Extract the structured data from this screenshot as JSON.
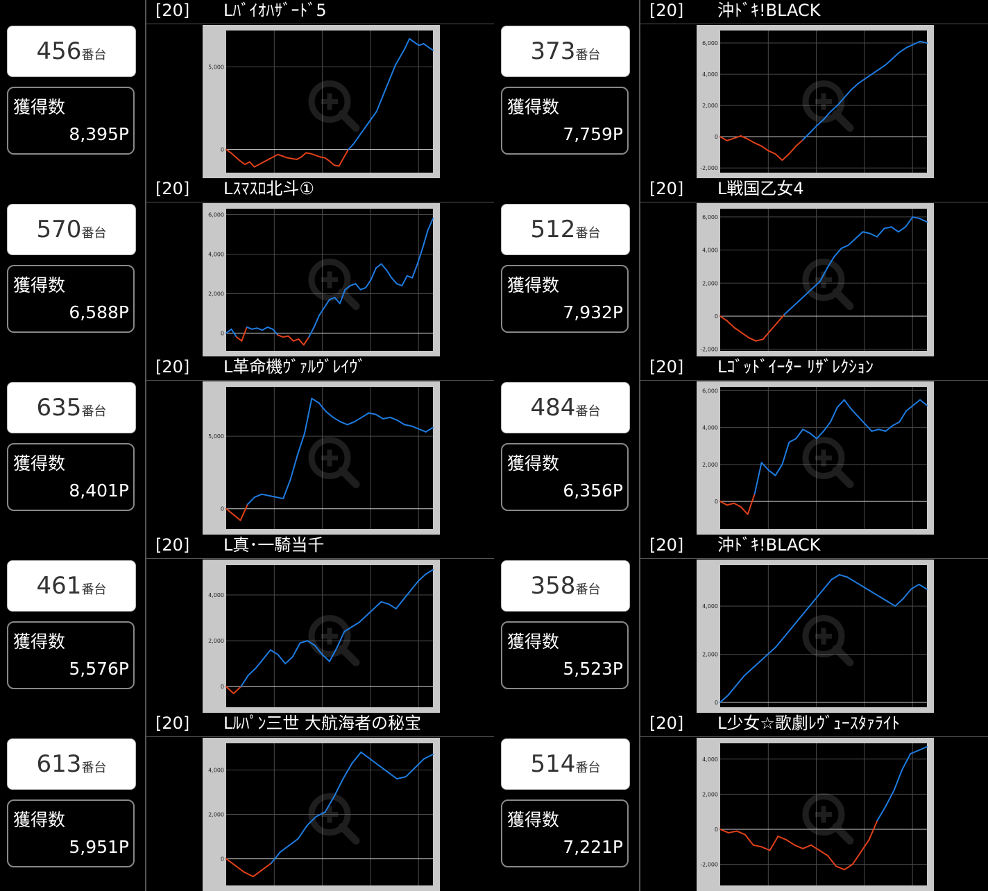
{
  "unit_suffix": "番台",
  "win_label": "獲得数",
  "colors": {
    "positive": "#1e7be0",
    "negative": "#e0401a",
    "frame": "#c8c8c8",
    "plot_bg": "#000000"
  },
  "zoom_icon": "magnifier-plus-icon",
  "cells": [
    {
      "unit": "456",
      "win": "8,395P",
      "count": "[20]",
      "machine": "Lﾊﾞｲｵﾊｻﾞｰﾄﾞ5"
    },
    {
      "unit": "373",
      "win": "7,759P",
      "count": "[20]",
      "machine": "沖ﾄﾞｷ!BLACK"
    },
    {
      "unit": "570",
      "win": "6,588P",
      "count": "[20]",
      "machine": "Lｽﾏｽﾛ北斗①"
    },
    {
      "unit": "512",
      "win": "7,932P",
      "count": "[20]",
      "machine": "L戦国乙女4"
    },
    {
      "unit": "635",
      "win": "8,401P",
      "count": "[20]",
      "machine": "L革命機ｳﾞｧﾙｳﾞﾚｲｳﾞ"
    },
    {
      "unit": "484",
      "win": "6,356P",
      "count": "[20]",
      "machine": "Lｺﾞｯﾄﾞｲｰﾀｰ ﾘｻﾞﾚｸｼｮﾝ"
    },
    {
      "unit": "461",
      "win": "5,576P",
      "count": "[20]",
      "machine": "L真･一騎当千"
    },
    {
      "unit": "358",
      "win": "5,523P",
      "count": "[20]",
      "machine": "沖ﾄﾞｷ!BLACK"
    },
    {
      "unit": "613",
      "win": "5,951P",
      "count": "[20]",
      "machine": "Lﾙﾊﾟﾝ三世 大航海者の秘宝"
    },
    {
      "unit": "514",
      "win": "7,221P",
      "count": "[20]",
      "machine": "L少女☆歌劇ﾚｳﾞｭｰｽﾀｧﾗｲﾄ"
    }
  ],
  "chart_data": [
    {
      "type": "line",
      "ylim": [
        -1400,
        7200
      ],
      "ticks": [
        0,
        5000
      ],
      "tick_labels": [
        "0",
        "5,000"
      ],
      "values": [
        0,
        -200,
        -450,
        -700,
        -900,
        -750,
        -1050,
        -900,
        -750,
        -600,
        -450,
        -300,
        -400,
        -500,
        -550,
        -600,
        -450,
        -200,
        -250,
        -350,
        -450,
        -500,
        -700,
        -950,
        -1000,
        -500,
        0,
        300,
        700,
        1100,
        1500,
        1900,
        2300,
        3000,
        3700,
        4400,
        5100,
        5600,
        6100,
        6700,
        6500,
        6300,
        6400,
        6200,
        6000
      ]
    },
    {
      "type": "line",
      "ylim": [
        -2300,
        6800
      ],
      "ticks": [
        -2000,
        0,
        2000,
        4000,
        6000
      ],
      "tick_labels": [
        "-2,000",
        "0",
        "2,000",
        "4,000",
        "6,000"
      ],
      "values": [
        0,
        -250,
        -100,
        50,
        -150,
        -400,
        -600,
        -900,
        -1100,
        -1500,
        -1100,
        -600,
        -200,
        250,
        700,
        1100,
        1600,
        2000,
        2500,
        3000,
        3400,
        3700,
        4000,
        4300,
        4600,
        5000,
        5400,
        5700,
        5900,
        6100,
        6000
      ]
    },
    {
      "type": "line",
      "ylim": [
        -900,
        6300
      ],
      "ticks": [
        0,
        2000,
        4000,
        6000
      ],
      "tick_labels": [
        "0",
        "2,000",
        "4,000",
        "6,000"
      ],
      "values": [
        0,
        200,
        -200,
        -400,
        300,
        200,
        250,
        150,
        300,
        200,
        -100,
        -200,
        -150,
        -400,
        -300,
        -600,
        -200,
        300,
        900,
        1300,
        1700,
        1800,
        1500,
        2200,
        2400,
        2500,
        2200,
        2300,
        2700,
        3300,
        3500,
        3200,
        2800,
        2500,
        2400,
        2900,
        2800,
        3500,
        4300,
        5200,
        5800
      ]
    },
    {
      "type": "line",
      "ylim": [
        -2100,
        6500
      ],
      "ticks": [
        -2000,
        0,
        2000,
        4000,
        6000
      ],
      "tick_labels": [
        "-2,000",
        "0",
        "2,000",
        "4,000",
        "6,000"
      ],
      "values": [
        0,
        -300,
        -700,
        -1000,
        -1300,
        -1500,
        -1400,
        -900,
        -400,
        100,
        500,
        900,
        1300,
        1700,
        2100,
        2900,
        3600,
        4100,
        4300,
        4700,
        5100,
        5000,
        4800,
        5300,
        5400,
        5100,
        5400,
        6000,
        5900,
        5700
      ]
    },
    {
      "type": "line",
      "ylim": [
        -1400,
        8400
      ],
      "ticks": [
        0,
        5000
      ],
      "tick_labels": [
        "0",
        "5,000"
      ],
      "values": [
        0,
        -400,
        -800,
        300,
        800,
        1000,
        900,
        800,
        700,
        2000,
        3700,
        5200,
        7600,
        7300,
        6700,
        6300,
        6000,
        5800,
        6000,
        6300,
        6600,
        6500,
        6200,
        6300,
        6100,
        5800,
        5700,
        5500,
        5300,
        5600
      ]
    },
    {
      "type": "line",
      "ylim": [
        -1500,
        6200
      ],
      "ticks": [
        0,
        2000,
        4000,
        6000
      ],
      "tick_labels": [
        "0",
        "2,000",
        "4,000",
        "6,000"
      ],
      "values": [
        0,
        -200,
        -100,
        -300,
        -700,
        400,
        2100,
        1700,
        1400,
        2000,
        3200,
        3400,
        3900,
        3700,
        3400,
        3800,
        4300,
        5100,
        5500,
        5000,
        4600,
        4200,
        3800,
        3900,
        3800,
        4100,
        4300,
        4900,
        5200,
        5500,
        5200
      ]
    },
    {
      "type": "line",
      "ylim": [
        -900,
        5300
      ],
      "ticks": [
        0,
        2000,
        4000
      ],
      "tick_labels": [
        "0",
        "2,000",
        "4,000"
      ],
      "values": [
        0,
        -300,
        0,
        500,
        800,
        1200,
        1600,
        1400,
        1000,
        1300,
        1900,
        2000,
        1800,
        1400,
        1100,
        1700,
        2400,
        2600,
        2800,
        3100,
        3400,
        3700,
        3600,
        3400,
        3800,
        4200,
        4600,
        4900,
        5100
      ]
    },
    {
      "type": "line",
      "ylim": [
        -200,
        5700
      ],
      "ticks": [
        0,
        2000,
        4000
      ],
      "tick_labels": [
        "0",
        "2,000",
        "4,000"
      ],
      "values": [
        0,
        300,
        700,
        1100,
        1400,
        1700,
        2000,
        2300,
        2700,
        3100,
        3500,
        3900,
        4300,
        4700,
        5100,
        5300,
        5200,
        5000,
        4800,
        4600,
        4400,
        4200,
        4000,
        4300,
        4700,
        4900,
        4700
      ]
    },
    {
      "type": "line",
      "ylim": [
        -1200,
        5200
      ],
      "ticks": [
        0,
        2000,
        4000
      ],
      "tick_labels": [
        "0",
        "2,000",
        "4,000"
      ],
      "values": [
        0,
        -300,
        -600,
        -800,
        -500,
        -200,
        300,
        600,
        900,
        1500,
        1900,
        2100,
        2800,
        3600,
        4300,
        4800,
        4500,
        4200,
        3900,
        3600,
        3700,
        4100,
        4500,
        4700
      ]
    },
    {
      "type": "line",
      "ylim": [
        -3200,
        4900
      ],
      "ticks": [
        -2000,
        0,
        2000,
        4000
      ],
      "tick_labels": [
        "-2,000",
        "0",
        "2,000",
        "4,000"
      ],
      "values": [
        0,
        -200,
        -100,
        -300,
        -900,
        -1000,
        -1200,
        -400,
        -600,
        -900,
        -1100,
        -900,
        -1200,
        -1500,
        -2100,
        -2300,
        -2000,
        -1300,
        -600,
        500,
        1300,
        2200,
        3400,
        4300,
        4500,
        4700
      ]
    }
  ]
}
